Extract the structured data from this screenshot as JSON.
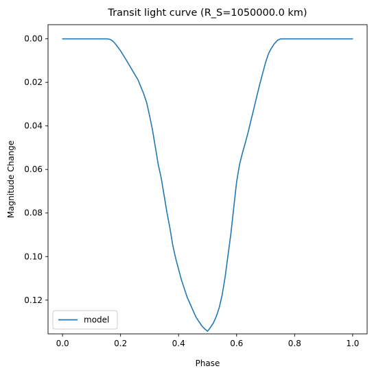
{
  "chart_data": {
    "type": "line",
    "title": "Transit light curve (R_S=1050000.0 km)",
    "xlabel": "Phase",
    "ylabel": "Magnitude Change",
    "xlim": [
      -0.05,
      1.05
    ],
    "ylim": [
      0.1355,
      -0.0065
    ],
    "y_inverted": true,
    "grid": false,
    "legend_position": "lower-left",
    "x_ticks": [
      "0.0",
      "0.2",
      "0.4",
      "0.6",
      "0.8",
      "1.0"
    ],
    "y_ticks": [
      "0.00",
      "0.02",
      "0.04",
      "0.06",
      "0.08",
      "0.10",
      "0.12"
    ],
    "series": [
      {
        "name": "model",
        "color": "#1f77b4",
        "x": [
          0.0,
          0.05,
          0.1,
          0.155,
          0.165,
          0.175,
          0.185,
          0.2,
          0.22,
          0.24,
          0.26,
          0.28,
          0.29,
          0.3,
          0.31,
          0.32,
          0.33,
          0.34,
          0.35,
          0.36,
          0.37,
          0.38,
          0.39,
          0.4,
          0.41,
          0.42,
          0.43,
          0.44,
          0.45,
          0.46,
          0.47,
          0.48,
          0.49,
          0.5,
          0.51,
          0.52,
          0.53,
          0.54,
          0.55,
          0.56,
          0.57,
          0.58,
          0.59,
          0.6,
          0.61,
          0.62,
          0.63,
          0.64,
          0.65,
          0.66,
          0.67,
          0.68,
          0.69,
          0.7,
          0.71,
          0.72,
          0.73,
          0.74,
          0.745,
          0.75,
          0.755,
          0.76,
          0.8,
          0.9,
          1.0
        ],
        "y": [
          0.0,
          0.0,
          0.0,
          0.0,
          0.0003,
          0.0012,
          0.0028,
          0.0055,
          0.0098,
          0.0143,
          0.0188,
          0.0253,
          0.0293,
          0.0353,
          0.0418,
          0.0498,
          0.0578,
          0.0638,
          0.0718,
          0.0798,
          0.0868,
          0.0948,
          0.1008,
          0.1058,
          0.1108,
          0.1148,
          0.1188,
          0.1218,
          0.1248,
          0.1278,
          0.1298,
          0.1318,
          0.1332,
          0.1343,
          0.1325,
          0.1305,
          0.1275,
          0.1235,
          0.1178,
          0.1098,
          0.0998,
          0.0898,
          0.0778,
          0.0658,
          0.0578,
          0.0525,
          0.0478,
          0.0428,
          0.0372,
          0.0318,
          0.0262,
          0.0208,
          0.0158,
          0.0108,
          0.0068,
          0.0043,
          0.0023,
          0.0008,
          0.0004,
          0.0001,
          0.0,
          0.0,
          0.0,
          0.0,
          0.0
        ]
      }
    ]
  }
}
